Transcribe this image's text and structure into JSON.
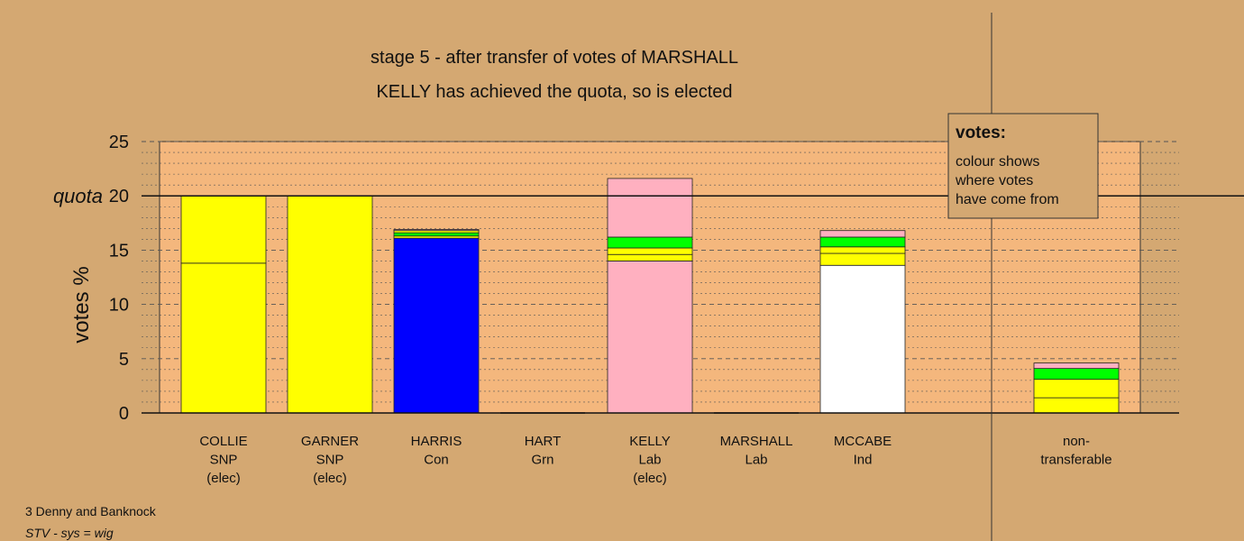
{
  "title": "stage 5 - after transfer of votes of MARSHALL",
  "subtitle": "KELLY has achieved the quota, so is elected",
  "footer": {
    "ward": "3 Denny and Banknock",
    "system": "STV - sys = wig"
  },
  "legend": {
    "heading": "votes:",
    "lines": [
      "colour shows",
      "where votes",
      "have come from"
    ]
  },
  "colors": {
    "background": "#d4a872",
    "plot_area": "#f4b77d",
    "snp": "#ffff00",
    "con": "#0000ff",
    "lab": "#ffb0c0",
    "grn": "#00ff00",
    "ind": "#ffffff"
  },
  "chart_data": {
    "type": "bar",
    "stacked": true,
    "ylabel": "votes %",
    "ylim": [
      0,
      25
    ],
    "yticks": [
      "0",
      "5",
      "10",
      "15",
      "20",
      "25"
    ],
    "quota": {
      "label": "quota",
      "value": 20
    },
    "candidates": [
      {
        "name": "COLLIE",
        "party": "SNP",
        "status": "(elec)",
        "segments": [
          {
            "source": "SNP",
            "color": "#ffff00",
            "value": 13.8
          },
          {
            "source": "SNP",
            "color": "#ffff00",
            "value": 6.2
          }
        ]
      },
      {
        "name": "GARNER",
        "party": "SNP",
        "status": "(elec)",
        "segments": [
          {
            "source": "SNP",
            "color": "#ffff00",
            "value": 20.0
          }
        ]
      },
      {
        "name": "HARRIS",
        "party": "Con",
        "status": "",
        "segments": [
          {
            "source": "Con",
            "color": "#0000ff",
            "value": 16.1
          },
          {
            "source": "SNP",
            "color": "#ffff00",
            "value": 0.2
          },
          {
            "source": "Grn",
            "color": "#00ff00",
            "value": 0.3
          },
          {
            "source": "SNP",
            "color": "#ffff00",
            "value": 0.2
          },
          {
            "source": "Lab",
            "color": "#ffb0c0",
            "value": 0.1
          }
        ]
      },
      {
        "name": "HART",
        "party": "Grn",
        "status": "",
        "segments": []
      },
      {
        "name": "KELLY",
        "party": "Lab",
        "status": "(elec)",
        "segments": [
          {
            "source": "Lab",
            "color": "#ffb0c0",
            "value": 14.0
          },
          {
            "source": "SNP",
            "color": "#ffff00",
            "value": 0.6
          },
          {
            "source": "SNP",
            "color": "#ffff00",
            "value": 0.6
          },
          {
            "source": "Grn",
            "color": "#00ff00",
            "value": 1.0
          },
          {
            "source": "Lab",
            "color": "#ffb0c0",
            "value": 5.4
          }
        ]
      },
      {
        "name": "MARSHALL",
        "party": "Lab",
        "status": "",
        "segments": []
      },
      {
        "name": "MCCABE",
        "party": "Ind",
        "status": "",
        "segments": [
          {
            "source": "Ind",
            "color": "#ffffff",
            "value": 13.6
          },
          {
            "source": "SNP",
            "color": "#ffff00",
            "value": 1.1
          },
          {
            "source": "SNP",
            "color": "#ffff00",
            "value": 0.6
          },
          {
            "source": "Grn",
            "color": "#00ff00",
            "value": 0.9
          },
          {
            "source": "Lab",
            "color": "#ffb0c0",
            "value": 0.6
          }
        ]
      },
      {
        "name": "non-",
        "party": "transferable",
        "status": "",
        "segments": [
          {
            "source": "SNP",
            "color": "#ffff00",
            "value": 1.4
          },
          {
            "source": "SNP",
            "color": "#ffff00",
            "value": 1.7
          },
          {
            "source": "Grn",
            "color": "#00ff00",
            "value": 1.0
          },
          {
            "source": "Lab",
            "color": "#ffb0c0",
            "value": 0.5
          }
        ]
      }
    ]
  }
}
